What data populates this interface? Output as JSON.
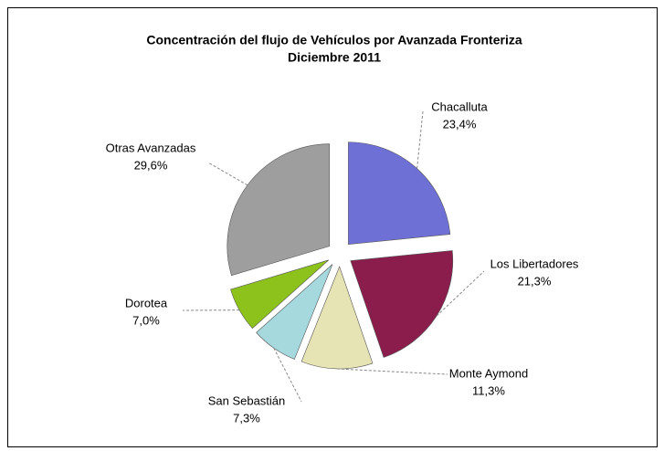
{
  "chart_data": {
    "type": "pie",
    "title": "Concentración del flujo de Vehículos por Avanzada Fronteriza",
    "subtitle": "Diciembre  2011",
    "categories": [
      "Chacalluta",
      "Los Libertadores",
      "Monte Aymond",
      "San Sebastián",
      "Dorotea",
      "Otras Avanzadas"
    ],
    "values": [
      23.4,
      21.3,
      11.3,
      7.3,
      7.0,
      29.6
    ],
    "value_labels": [
      "23,4%",
      "21,3%",
      "11,3%",
      "7,3%",
      "7,0%",
      "29,6%"
    ],
    "colors": [
      "#6f70d6",
      "#8a1d4c",
      "#e6e4b4",
      "#a6d9de",
      "#8dc21c",
      "#9e9e9e"
    ]
  }
}
